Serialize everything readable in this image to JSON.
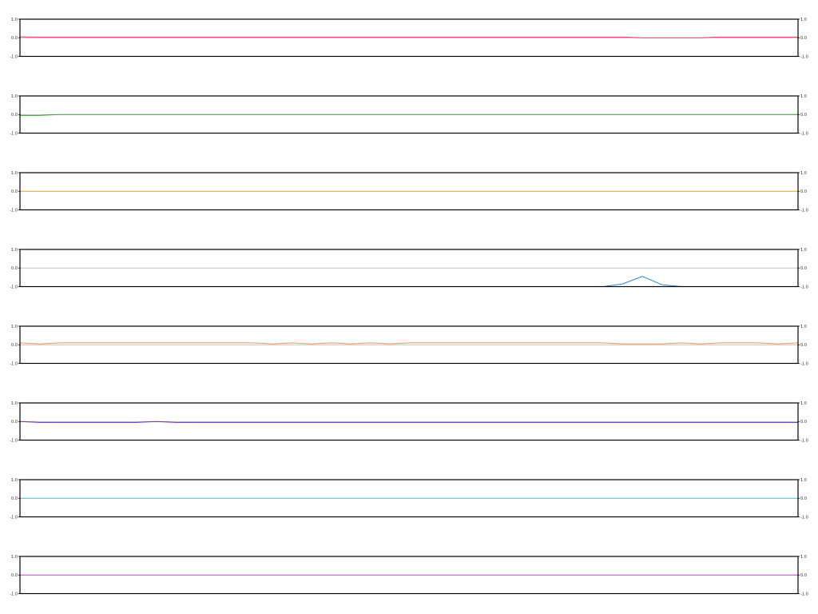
{
  "chart_data": {
    "type": "line",
    "layout": "stacked",
    "ylim": [
      -1,
      1
    ],
    "grid": false,
    "legend": "none",
    "y_ticks": [
      1.0,
      0.0,
      -1.0
    ],
    "y_tick_labels": [
      "1.0",
      "0.0",
      "-1.0"
    ],
    "x": [
      0,
      1,
      2,
      3,
      4,
      5,
      6,
      7,
      8,
      9,
      10,
      11,
      12,
      13,
      14,
      15,
      16,
      17,
      18,
      19,
      20,
      21,
      22,
      23,
      24,
      25,
      26,
      27,
      28,
      29,
      30,
      31,
      32,
      33,
      34,
      35,
      36,
      37,
      38,
      39,
      40
    ],
    "series": [
      {
        "color": "#e8384f",
        "values": [
          0.05,
          0.04,
          0.04,
          0.04,
          0.04,
          0.04,
          0.04,
          0.04,
          0.04,
          0.04,
          0.04,
          0.04,
          0.04,
          0.04,
          0.04,
          0.04,
          0.04,
          0.04,
          0.04,
          0.04,
          0.04,
          0.04,
          0.04,
          0.04,
          0.04,
          0.04,
          0.04,
          0.04,
          0.04,
          0.04,
          0.04,
          0.04,
          0.0,
          0.0,
          0.0,
          0.0,
          0.04,
          0.04,
          0.04,
          0.04,
          0.04
        ]
      },
      {
        "color": "#3a9a3a",
        "values": [
          -0.05,
          -0.05,
          0.0,
          0.0,
          0.0,
          0.0,
          0.0,
          0.0,
          0.0,
          0.0,
          0.0,
          0.0,
          0.0,
          0.0,
          0.0,
          0.0,
          0.0,
          0.0,
          0.0,
          0.0,
          0.0,
          0.0,
          0.0,
          0.0,
          0.0,
          0.0,
          0.0,
          0.0,
          0.0,
          0.0,
          0.0,
          0.0,
          0.0,
          0.0,
          0.0,
          0.0,
          0.0,
          0.0,
          0.0,
          0.0,
          0.0
        ]
      },
      {
        "color": "#e5b800",
        "values": [
          0,
          0,
          0,
          0,
          0,
          0,
          0,
          0,
          0,
          0,
          0,
          0,
          0,
          0,
          0,
          0,
          0,
          0,
          0,
          0,
          0,
          0,
          0,
          0,
          0,
          0,
          0,
          0,
          0,
          0,
          0,
          0,
          0,
          0,
          0,
          0,
          0,
          0,
          0,
          0,
          0
        ]
      },
      {
        "color": "#2a86c8",
        "values": [
          -1,
          -1,
          -1,
          -1,
          -1,
          -1,
          -1,
          -1,
          -1,
          -1,
          -1,
          -1,
          -1,
          -1,
          -1,
          -1,
          -1,
          -1,
          -1,
          -1,
          -1,
          -1,
          -1,
          -1,
          -1,
          -1,
          -1,
          -1,
          -1,
          -1,
          -1,
          -0.85,
          -0.45,
          -0.9,
          -1,
          -1,
          -1,
          -1,
          -1,
          -1,
          -1
        ]
      },
      {
        "color": "#f0955a",
        "values": [
          0.1,
          0.05,
          0.1,
          0.1,
          0.1,
          0.1,
          0.1,
          0.1,
          0.1,
          0.1,
          0.1,
          0.1,
          0.1,
          0.05,
          0.1,
          0.05,
          0.1,
          0.05,
          0.1,
          0.05,
          0.1,
          0.1,
          0.1,
          0.1,
          0.1,
          0.1,
          0.1,
          0.1,
          0.1,
          0.1,
          0.1,
          0.05,
          0.05,
          0.05,
          0.1,
          0.05,
          0.1,
          0.1,
          0.1,
          0.05,
          0.1
        ]
      },
      {
        "color": "#6b2fb5",
        "values": [
          0.0,
          -0.05,
          -0.05,
          -0.05,
          -0.05,
          -0.05,
          -0.05,
          0.0,
          -0.05,
          -0.05,
          -0.05,
          -0.05,
          -0.05,
          -0.05,
          -0.05,
          -0.05,
          -0.05,
          -0.05,
          -0.05,
          -0.05,
          -0.05,
          -0.05,
          -0.05,
          -0.05,
          -0.05,
          -0.05,
          -0.05,
          -0.05,
          -0.05,
          -0.05,
          -0.05,
          -0.05,
          -0.05,
          -0.05,
          -0.05,
          -0.05,
          -0.05,
          -0.05,
          -0.05,
          -0.05,
          -0.05
        ]
      },
      {
        "color": "#3ed0d0",
        "values": [
          0,
          0,
          0,
          0,
          0,
          0,
          0,
          0,
          0,
          0,
          0,
          0,
          0,
          0,
          0,
          0,
          0,
          0,
          0,
          0,
          0,
          0,
          0,
          0,
          0,
          0,
          0,
          0,
          0,
          0,
          0,
          0,
          0,
          0,
          0,
          0,
          0,
          0,
          0,
          0,
          0
        ]
      },
      {
        "color": "#cc44cc",
        "values": [
          0,
          0,
          0,
          0,
          0,
          0,
          0,
          0,
          0,
          0,
          0,
          0,
          0,
          0,
          0,
          0,
          0,
          0,
          0,
          0,
          0,
          0,
          0,
          0,
          0,
          0,
          0,
          0,
          0,
          0,
          0,
          0,
          0,
          0,
          0,
          0,
          0,
          0,
          0,
          0,
          0
        ]
      }
    ]
  }
}
